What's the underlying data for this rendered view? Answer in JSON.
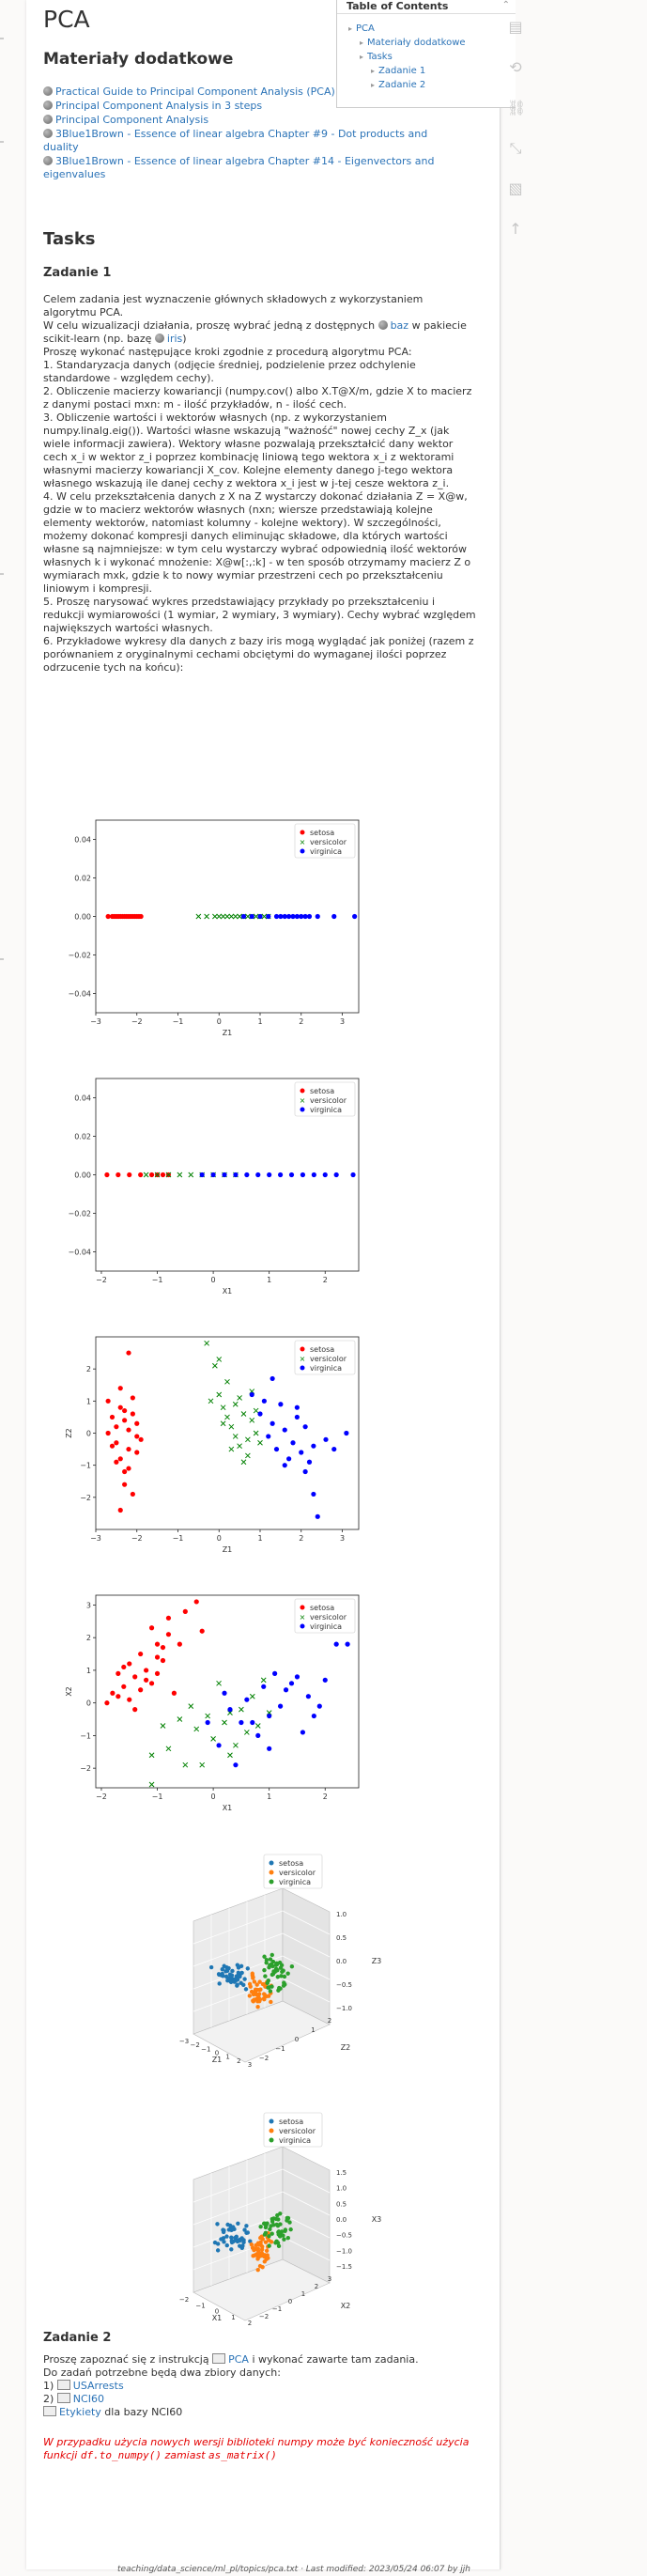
{
  "title": "PCA",
  "materials_heading": "Materiały dodatkowe",
  "links": [
    "Practical Guide to Principal Component Analysis (PCA) in R & Python",
    "Principal Component Analysis in 3 steps",
    "Principal Component Analysis",
    "3Blue1Brown - Essence of linear algebra Chapter #9 - Dot products and duality",
    "3Blue1Brown - Essence of linear algebra Chapter #14 - Eigenvectors and eigenvalues"
  ],
  "tasks_heading": "Tasks",
  "task1_heading": "Zadanie 1",
  "task1_intro": "Celem zadania jest wyznaczenie głównych składowych z wykorzystaniem algorytmu PCA.",
  "task1_dataset_pre": "W celu wizualizacji działania, proszę wybrać jedną z dostępnych",
  "task1_dataset_link1": "baz",
  "task1_dataset_mid": "w pakiecie scikit-learn (np. bazę",
  "task1_dataset_link2": "iris",
  "task1_dataset_post": ")",
  "task1_steps": [
    "Proszę wykonać następujące kroki zgodnie z procedurą algorytmu PCA:",
    "1. Standaryzacja danych (odjęcie średniej, podzielenie przez odchylenie standardowe - względem cechy).",
    "2. Obliczenie macierzy kowariancji (numpy.cov() albo X.T@X/m, gdzie X to macierz z danymi postaci mxn: m - ilość przykładów, n - ilość cech.",
    "3. Obliczenie wartości i wektorów własnych (np. z wykorzystaniem numpy.linalg.eig()). Wartości własne wskazują \"ważność\" nowej cechy Z_x (jak wiele informacji zawiera). Wektory własne pozwalają przekształcić dany wektor cech x_i w wektor z_i poprzez kombinację liniową tego wektora x_i z wektorami własnymi macierzy kowariancji X_cov. Kolejne elementy danego j-tego wektora własnego wskazują ile danej cechy z wektora x_i jest w j-tej cesze wektora z_i.",
    "4. W celu przekształcenia danych z X na Z wystarczy dokonać działania Z = X@w, gdzie w to macierz wektorów własnych (nxn; wiersze przedstawiają kolejne elementy wektorów, natomiast kolumny - kolejne wektory). W szczególności, możemy dokonać kompresji danych eliminując składowe, dla których wartości własne są najmniejsze: w tym celu wystarczy wybrać odpowiednią ilość wektorów własnych k i wykonać mnożenie: X@w[:,:k] - w ten sposób otrzymamy macierz Z o wymiarach mxk, gdzie k to nowy wymiar przestrzeni cech po przekształceniu liniowym i kompresji.",
    "5. Proszę narysować wykres przedstawiający przykłady po przekształceniu i redukcji wymiarowości (1 wymiar, 2 wymiary, 3 wymiary). Cechy wybrać względem największych wartości własnych.",
    "6. Przykładowe wykresy dla danych z bazy iris mogą wyglądać jak poniżej (razem z porównaniem z oryginalnymi cechami obciętymi do wymaganej ilości poprzez odrzucenie tych na końcu):"
  ],
  "legend": [
    "setosa",
    "versicolor",
    "virginica"
  ],
  "colors": {
    "setosa": "#ff0000",
    "versicolor": "#008000",
    "virginica": "#0000ff",
    "link": "#2b73b7",
    "warning": "#e40000",
    "setosa3d": "#1f77b4",
    "versicolor3d": "#ff7f0e",
    "virginica3d": "#2ca02c"
  },
  "chart_data": [
    {
      "type": "scatter",
      "xlabel": "Z1",
      "ylabel": "",
      "xlim": [
        -3,
        3.4
      ],
      "ylim": [
        -0.05,
        0.05
      ],
      "xticks": [
        "−3",
        "−2",
        "−1",
        "0",
        "1",
        "2",
        "3"
      ],
      "yticks": [
        "0.04",
        "0.02",
        "0.00",
        "−0.02",
        "−0.04"
      ],
      "series": [
        {
          "name": "setosa",
          "marker": "circle",
          "x": [
            -2.7,
            -2.6,
            -2.55,
            -2.5,
            -2.45,
            -2.4,
            -2.35,
            -2.3,
            -2.25,
            -2.2,
            -2.15,
            -2.1,
            -2.05,
            -2.0,
            -1.95,
            -1.9
          ],
          "y": [
            0,
            0,
            0,
            0,
            0,
            0,
            0,
            0,
            0,
            0,
            0,
            0,
            0,
            0,
            0,
            0
          ]
        },
        {
          "name": "versicolor",
          "marker": "x",
          "x": [
            -0.5,
            -0.3,
            -0.1,
            0,
            0.1,
            0.2,
            0.3,
            0.4,
            0.5,
            0.6,
            0.7,
            0.8,
            0.9,
            1.0,
            1.1,
            1.2
          ],
          "y": [
            0,
            0,
            0,
            0,
            0,
            0,
            0,
            0,
            0,
            0,
            0,
            0,
            0,
            0,
            0,
            0
          ]
        },
        {
          "name": "virginica",
          "marker": "circle",
          "x": [
            0.6,
            0.8,
            1.0,
            1.2,
            1.4,
            1.5,
            1.6,
            1.7,
            1.8,
            1.9,
            2.0,
            2.1,
            2.2,
            2.4,
            2.8,
            3.3
          ],
          "y": [
            0,
            0,
            0,
            0,
            0,
            0,
            0,
            0,
            0,
            0,
            0,
            0,
            0,
            0,
            0,
            0
          ]
        }
      ]
    },
    {
      "type": "scatter",
      "xlabel": "X1",
      "ylabel": "",
      "xlim": [
        -2.1,
        2.6
      ],
      "ylim": [
        -0.05,
        0.05
      ],
      "xticks": [
        "−2",
        "−1",
        "0",
        "1",
        "2"
      ],
      "yticks": [
        "0.04",
        "0.02",
        "0.00",
        "−0.02",
        "−0.04"
      ],
      "series": [
        {
          "name": "setosa",
          "marker": "circle",
          "x": [
            -1.9,
            -1.7,
            -1.5,
            -1.3,
            -1.1,
            -1.0,
            -0.9,
            -0.8
          ],
          "y": [
            0,
            0,
            0,
            0,
            0,
            0,
            0,
            0
          ]
        },
        {
          "name": "versicolor",
          "marker": "x",
          "x": [
            -1.2,
            -1.0,
            -0.8,
            -0.6,
            -0.4,
            -0.2,
            0,
            0.2,
            0.4
          ],
          "y": [
            0,
            0,
            0,
            0,
            0,
            0,
            0,
            0,
            0
          ]
        },
        {
          "name": "virginica",
          "marker": "circle",
          "x": [
            -0.2,
            0,
            0.2,
            0.4,
            0.6,
            0.8,
            1.0,
            1.2,
            1.4,
            1.6,
            1.8,
            2.0,
            2.2,
            2.5
          ],
          "y": [
            0,
            0,
            0,
            0,
            0,
            0,
            0,
            0,
            0,
            0,
            0,
            0,
            0,
            0
          ]
        }
      ]
    },
    {
      "type": "scatter",
      "xlabel": "Z1",
      "ylabel": "Z2",
      "xlim": [
        -3,
        3.4
      ],
      "ylim": [
        -3,
        3
      ],
      "xticks": [
        "−3",
        "−2",
        "−1",
        "0",
        "1",
        "2",
        "3"
      ],
      "yticks": [
        "2",
        "1",
        "0",
        "−1",
        "−2"
      ],
      "series": [
        {
          "name": "setosa",
          "marker": "circle",
          "x": [
            -2.7,
            -2.6,
            -2.5,
            -2.5,
            -2.4,
            -2.4,
            -2.3,
            -2.3,
            -2.2,
            -2.2,
            -2.1,
            -2.1,
            -2.0,
            -2.0,
            -2.6,
            -2.4,
            -2.2,
            -2.5,
            -2.3,
            -2.1,
            -2.7,
            -2.0,
            -1.9,
            -2.4,
            -2.2,
            -2.3
          ],
          "y": [
            1.0,
            0.5,
            0.2,
            -0.3,
            0.8,
            -0.8,
            0.4,
            -1.2,
            0.1,
            -0.5,
            0.6,
            -1.9,
            -0.1,
            -0.6,
            -0.4,
            1.4,
            2.5,
            -0.9,
            -1.6,
            1.1,
            0.0,
            0.3,
            -0.2,
            -2.4,
            -1.1,
            0.7
          ]
        },
        {
          "name": "versicolor",
          "marker": "x",
          "x": [
            -0.3,
            -0.1,
            0.0,
            0.1,
            0.2,
            0.3,
            0.4,
            0.5,
            0.6,
            0.7,
            0.8,
            0.9,
            1.0,
            0.2,
            0.4,
            0.6,
            0.1,
            0.5,
            0.3,
            0.8,
            0.0,
            -0.2,
            0.7,
            0.9
          ],
          "y": [
            2.8,
            2.1,
            1.2,
            0.8,
            0.5,
            0.2,
            -0.1,
            -0.4,
            0.6,
            -0.7,
            1.3,
            0.0,
            -0.3,
            1.6,
            0.9,
            -0.9,
            0.3,
            1.1,
            -0.5,
            0.4,
            2.3,
            1.0,
            -0.2,
            0.7
          ]
        },
        {
          "name": "virginica",
          "marker": "circle",
          "x": [
            0.8,
            1.0,
            1.1,
            1.2,
            1.3,
            1.4,
            1.5,
            1.6,
            1.7,
            1.8,
            1.9,
            2.0,
            2.1,
            2.2,
            2.3,
            2.4,
            2.6,
            2.8,
            3.1,
            1.3,
            1.6,
            1.9,
            2.1,
            2.3
          ],
          "y": [
            1.2,
            0.6,
            1.0,
            -0.1,
            0.3,
            -0.5,
            0.9,
            0.1,
            -0.8,
            -0.3,
            0.5,
            -0.6,
            0.2,
            -0.9,
            -1.9,
            -2.6,
            -0.2,
            -0.5,
            0.0,
            1.7,
            -1.0,
            0.8,
            -1.2,
            -0.4
          ]
        }
      ]
    },
    {
      "type": "scatter",
      "xlabel": "X1",
      "ylabel": "X2",
      "xlim": [
        -2.1,
        2.6
      ],
      "ylim": [
        -2.6,
        3.3
      ],
      "xticks": [
        "−2",
        "−1",
        "0",
        "1",
        "2"
      ],
      "yticks": [
        "3",
        "2",
        "1",
        "0",
        "−1",
        "−2"
      ],
      "series": [
        {
          "name": "setosa",
          "marker": "circle",
          "x": [
            -1.9,
            -1.8,
            -1.7,
            -1.6,
            -1.5,
            -1.4,
            -1.3,
            -1.2,
            -1.1,
            -1.0,
            -0.9,
            -0.8,
            -0.7,
            -1.5,
            -1.3,
            -1.1,
            -0.9,
            -1.6,
            -1.4,
            -1.2,
            -1.0,
            -0.8,
            -1.7,
            -0.5,
            -0.3,
            -0.2,
            -0.6,
            -1.0
          ],
          "y": [
            0.0,
            0.3,
            0.9,
            0.5,
            1.2,
            0.8,
            1.5,
            1.0,
            0.6,
            1.8,
            1.3,
            2.1,
            0.3,
            0.1,
            0.4,
            2.3,
            1.7,
            1.1,
            -0.2,
            0.7,
            1.4,
            2.6,
            0.2,
            2.8,
            3.1,
            2.2,
            1.8,
            0.9
          ]
        },
        {
          "name": "versicolor",
          "marker": "x",
          "x": [
            -1.1,
            -0.8,
            -0.5,
            -0.3,
            -0.1,
            0.0,
            0.2,
            0.3,
            0.5,
            0.6,
            0.8,
            1.0,
            -0.4,
            0.1,
            0.4,
            0.7,
            -0.9,
            -0.2,
            0.9,
            0.3,
            -0.6,
            -1.1
          ],
          "y": [
            -2.5,
            -1.4,
            -1.9,
            -0.8,
            -0.4,
            -1.1,
            -0.6,
            -1.6,
            -0.2,
            -0.9,
            -0.7,
            -0.3,
            -0.1,
            0.6,
            -1.3,
            0.2,
            -0.7,
            -1.9,
            0.7,
            -0.3,
            -0.5,
            -1.6
          ]
        },
        {
          "name": "virginica",
          "marker": "circle",
          "x": [
            -0.1,
            0.1,
            0.3,
            0.5,
            0.6,
            0.8,
            0.9,
            1.0,
            1.1,
            1.2,
            1.3,
            1.5,
            1.6,
            1.7,
            1.8,
            2.0,
            2.2,
            2.4,
            0.4,
            0.7,
            1.4,
            1.9,
            0.2,
            1.0
          ],
          "y": [
            -0.6,
            -1.3,
            -0.2,
            -0.6,
            0.1,
            -1.0,
            0.5,
            -0.4,
            0.9,
            -0.1,
            0.4,
            0.8,
            -0.9,
            0.2,
            -0.4,
            0.7,
            1.8,
            1.8,
            -1.9,
            -0.6,
            0.6,
            -0.1,
            0.3,
            -1.4
          ]
        }
      ]
    },
    {
      "type": "scatter3d",
      "xlabel": "Z1",
      "ylabel": "Z2",
      "zlabel": "Z3",
      "xticks": [
        "−3",
        "−2",
        "−1",
        "0",
        "1",
        "2",
        "3"
      ],
      "yticks": [
        "−2",
        "−1",
        "0",
        "1",
        "2"
      ],
      "zticks": [
        "1.0",
        "0.5",
        "0.0",
        "−0.5",
        "−1.0"
      ],
      "legend_series": [
        "setosa",
        "versicolor",
        "virginica"
      ]
    },
    {
      "type": "scatter3d",
      "xlabel": "X1",
      "ylabel": "X2",
      "zlabel": "X3",
      "xticks": [
        "−2",
        "−1",
        "0",
        "1",
        "2"
      ],
      "yticks": [
        "−2",
        "−1",
        "0",
        "1",
        "2",
        "3"
      ],
      "zticks": [
        "1.5",
        "1.0",
        "0.5",
        "0.0",
        "−0.5",
        "−1.0",
        "−1.5"
      ],
      "legend_series": [
        "setosa",
        "versicolor",
        "virginica"
      ]
    }
  ],
  "task2_heading": "Zadanie 2",
  "task2_line1_pre": "Proszę zapoznać się z instrukcją",
  "task2_line1_link": "PCA",
  "task2_line1_post": "i wykonać zawarte tam zadania.",
  "task2_line2": "Do zadań potrzebne będą dwa zbiory danych:",
  "task2_item1_num": "1)",
  "task2_item1_link": "USArrests",
  "task2_item2_num": "2)",
  "task2_item2_link": "NCI60",
  "task2_item3_link": "Etykiety",
  "task2_item3_post": "dla bazy NCI60",
  "warning_pre": "W przypadku użycia nowych wersji biblioteki numpy może być konieczność użycia funkcji",
  "warning_code1": "df.to_numpy()",
  "warning_mid": "zamiast",
  "warning_code2": "as_matrix()",
  "toc": {
    "title": "Table of Contents",
    "items": [
      {
        "label": "PCA",
        "level": 1
      },
      {
        "label": "Materiały dodatkowe",
        "level": 2
      },
      {
        "label": "Tasks",
        "level": 2
      },
      {
        "label": "Zadanie 1",
        "level": 3
      },
      {
        "label": "Zadanie 2",
        "level": 3
      }
    ]
  },
  "footer": "teaching/data_science/ml_pl/topics/pca.txt · Last modified: 2023/05/24 06:07 by jjh"
}
